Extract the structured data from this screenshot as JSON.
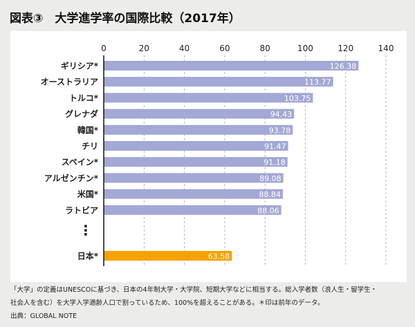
{
  "title": "図表③　大学進学率の国際比較（2017年）",
  "notes": [
    "「大学」の定義はUNESCOに基づき、日本の4年制大学・大学院、短期大学などに相当する。総入学者数（浪人生・留学生・",
    "社会人を含む）を大学入学適齢人口で割っているため、100%を超えることがある。＊印は前年のデータ。",
    "出典：GLOBAL NOTE"
  ],
  "chart_data": {
    "type": "bar",
    "orientation": "horizontal",
    "categories": [
      "ギリシア*",
      "オーストラリア",
      "トルコ*",
      "グレナダ",
      "韓国*",
      "チリ",
      "スペイン*",
      "アルゼンチン*",
      "米国*",
      "ラトビア",
      "日本*"
    ],
    "values": [
      126.38,
      113.77,
      103.75,
      94.43,
      93.78,
      91.47,
      91.18,
      89.08,
      88.84,
      88.06,
      63.58
    ],
    "value_labels": [
      "126.38",
      "113.77",
      "103.75",
      "94.43",
      "93.78",
      "91.47",
      "91.18",
      "89.08",
      "88.84",
      "88.06",
      "63.58"
    ],
    "xlim": [
      0,
      140
    ],
    "xticks": [
      "0",
      "20",
      "40",
      "60",
      "80",
      "100",
      "120",
      "140"
    ],
    "grid": true,
    "gap_marker": "⋮",
    "colors": {
      "bar": "#a3a8d4",
      "highlight": "#f5a200",
      "grid": "#999999"
    }
  }
}
